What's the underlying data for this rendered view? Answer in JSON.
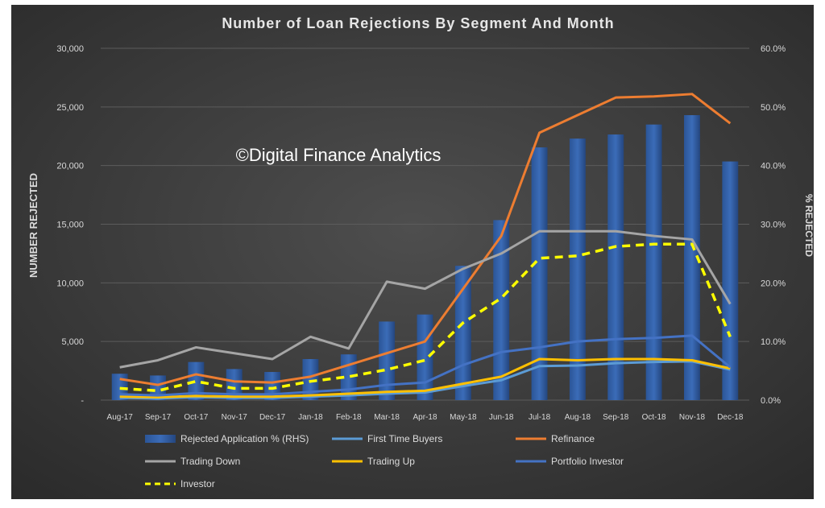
{
  "chart_data": {
    "type": "bar+line",
    "title": "Number of Loan Rejections By Segment And Month",
    "watermark": "©Digital Finance Analytics",
    "ylabel_left": "NUMBER REJECTED",
    "ylabel_right": "% REJECTED",
    "categories": [
      "Aug-17",
      "Sep-17",
      "Oct-17",
      "Nov-17",
      "Dec-17",
      "Jan-18",
      "Feb-18",
      "Mar-18",
      "Apr-18",
      "May-18",
      "Jun-18",
      "Jul-18",
      "Aug-18",
      "Sep-18",
      "Oct-18",
      "Nov-18",
      "Dec-18"
    ],
    "left_axis": {
      "ylim": [
        0,
        30000
      ],
      "ticks": [
        0,
        5000,
        10000,
        15000,
        20000,
        25000,
        30000
      ],
      "tick_labels": [
        "-",
        "5,000",
        "10,000",
        "15,000",
        "20,000",
        "25,000",
        "30,000"
      ]
    },
    "right_axis": {
      "ylim": [
        0,
        60
      ],
      "ticks": [
        0,
        10,
        20,
        30,
        40,
        50,
        60
      ],
      "tick_labels": [
        "0.0%",
        "10.0%",
        "20.0%",
        "30.0%",
        "40.0%",
        "50.0%",
        "60.0%"
      ]
    },
    "bar_series": {
      "name": "Rejected Application % (RHS)",
      "axis": "right",
      "color": "#2e5aa0",
      "values": [
        4.5,
        4.2,
        6.5,
        5.3,
        4.8,
        7.0,
        7.8,
        13.4,
        14.6,
        22.9,
        30.7,
        43.1,
        44.6,
        45.3,
        47.0,
        48.6,
        40.7
      ]
    },
    "line_series": [
      {
        "name": "First Time Buyers",
        "color": "#5b9bd5",
        "dashed": false,
        "values": [
          200,
          150,
          250,
          200,
          200,
          300,
          400,
          550,
          650,
          1200,
          1700,
          2900,
          2950,
          3150,
          3250,
          3300,
          2600
        ]
      },
      {
        "name": "Refinance",
        "color": "#ed7d31",
        "dashed": false,
        "values": [
          1800,
          1300,
          2200,
          1600,
          1500,
          2000,
          3000,
          4000,
          5000,
          9500,
          14000,
          22800,
          24300,
          25800,
          25900,
          26100,
          23600
        ]
      },
      {
        "name": "Trading Down",
        "color": "#a5a5a5",
        "dashed": false,
        "values": [
          2800,
          3400,
          4500,
          4000,
          3500,
          5400,
          4400,
          10100,
          9500,
          11200,
          12500,
          14400,
          14400,
          14400,
          14000,
          13700,
          8200
        ]
      },
      {
        "name": "Trading Up",
        "color": "#ffc000",
        "dashed": false,
        "values": [
          300,
          250,
          350,
          300,
          300,
          400,
          550,
          700,
          800,
          1400,
          2000,
          3500,
          3400,
          3500,
          3500,
          3400,
          2700
        ]
      },
      {
        "name": "Portfolio Investor",
        "color": "#4472c4",
        "dashed": false,
        "values": [
          500,
          400,
          600,
          500,
          500,
          700,
          900,
          1300,
          1500,
          3000,
          4100,
          4500,
          5000,
          5200,
          5300,
          5500,
          2800
        ]
      },
      {
        "name": "Investor",
        "color": "#ffff00",
        "dashed": true,
        "values": [
          1000,
          800,
          1600,
          1000,
          1000,
          1600,
          2000,
          2600,
          3400,
          6600,
          8700,
          12100,
          12300,
          13100,
          13300,
          13300,
          5400
        ]
      }
    ],
    "grid": true,
    "legend_position": "bottom"
  }
}
